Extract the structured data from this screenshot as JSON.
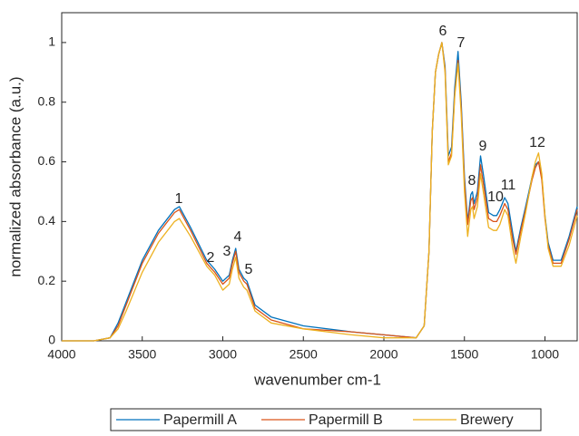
{
  "chart_data": {
    "type": "line",
    "xlabel": "wavenumber cm-1",
    "ylabel": "normalized absorbance (a.u.)",
    "x": [
      4000,
      3800,
      3700,
      3650,
      3600,
      3500,
      3400,
      3300,
      3270,
      3200,
      3100,
      3050,
      3000,
      2960,
      2940,
      2920,
      2900,
      2870,
      2850,
      2800,
      2700,
      2500,
      2200,
      2000,
      1800,
      1750,
      1720,
      1700,
      1680,
      1660,
      1640,
      1620,
      1600,
      1580,
      1560,
      1540,
      1520,
      1500,
      1480,
      1460,
      1450,
      1440,
      1420,
      1400,
      1380,
      1350,
      1320,
      1300,
      1280,
      1250,
      1230,
      1200,
      1180,
      1150,
      1120,
      1100,
      1080,
      1060,
      1040,
      1020,
      1000,
      980,
      950,
      900,
      850,
      800
    ],
    "series": [
      {
        "name": "Papermill A",
        "color": "#0072bd",
        "values": [
          0,
          0,
          0.01,
          0.06,
          0.13,
          0.27,
          0.37,
          0.44,
          0.45,
          0.38,
          0.27,
          0.24,
          0.2,
          0.22,
          0.27,
          0.31,
          0.24,
          0.21,
          0.2,
          0.12,
          0.08,
          0.05,
          0.03,
          0.02,
          0.01,
          0.05,
          0.3,
          0.7,
          0.9,
          0.96,
          1.0,
          0.92,
          0.62,
          0.65,
          0.85,
          0.97,
          0.8,
          0.55,
          0.4,
          0.49,
          0.5,
          0.46,
          0.5,
          0.62,
          0.55,
          0.43,
          0.42,
          0.42,
          0.44,
          0.48,
          0.46,
          0.36,
          0.3,
          0.38,
          0.45,
          0.5,
          0.55,
          0.59,
          0.6,
          0.55,
          0.42,
          0.33,
          0.27,
          0.27,
          0.35,
          0.45
        ]
      },
      {
        "name": "Papermill B",
        "color": "#d95319",
        "values": [
          0,
          0,
          0.01,
          0.05,
          0.12,
          0.26,
          0.36,
          0.43,
          0.44,
          0.37,
          0.26,
          0.23,
          0.19,
          0.21,
          0.26,
          0.3,
          0.23,
          0.2,
          0.19,
          0.11,
          0.07,
          0.04,
          0.03,
          0.02,
          0.01,
          0.05,
          0.3,
          0.7,
          0.9,
          0.96,
          1.0,
          0.91,
          0.6,
          0.63,
          0.83,
          0.94,
          0.78,
          0.53,
          0.39,
          0.47,
          0.48,
          0.44,
          0.48,
          0.59,
          0.52,
          0.41,
          0.4,
          0.4,
          0.42,
          0.46,
          0.44,
          0.34,
          0.29,
          0.37,
          0.44,
          0.49,
          0.54,
          0.58,
          0.6,
          0.54,
          0.41,
          0.32,
          0.26,
          0.26,
          0.34,
          0.44
        ]
      },
      {
        "name": "Brewery",
        "color": "#edb120",
        "values": [
          0,
          0,
          0.01,
          0.04,
          0.1,
          0.23,
          0.33,
          0.4,
          0.41,
          0.35,
          0.25,
          0.22,
          0.17,
          0.19,
          0.24,
          0.28,
          0.21,
          0.18,
          0.17,
          0.1,
          0.06,
          0.04,
          0.02,
          0.01,
          0.01,
          0.05,
          0.3,
          0.7,
          0.9,
          0.96,
          1.0,
          0.9,
          0.59,
          0.62,
          0.82,
          0.93,
          0.76,
          0.5,
          0.35,
          0.44,
          0.45,
          0.41,
          0.45,
          0.56,
          0.49,
          0.38,
          0.37,
          0.37,
          0.39,
          0.44,
          0.42,
          0.31,
          0.26,
          0.35,
          0.43,
          0.49,
          0.55,
          0.6,
          0.63,
          0.56,
          0.42,
          0.31,
          0.25,
          0.25,
          0.32,
          0.42
        ]
      }
    ],
    "annotations": [
      "1",
      "2",
      "3",
      "4",
      "5",
      "6",
      "7",
      "8",
      "9",
      "10",
      "11",
      "12"
    ],
    "xlim": [
      4000,
      800
    ],
    "xticks": [
      4000,
      3500,
      3000,
      2500,
      2000,
      1500,
      1000
    ],
    "ylim": [
      0,
      1.1
    ],
    "yticks": [
      0,
      0.2,
      0.4,
      0.6,
      0.8,
      1
    ],
    "legend": "bottom"
  }
}
